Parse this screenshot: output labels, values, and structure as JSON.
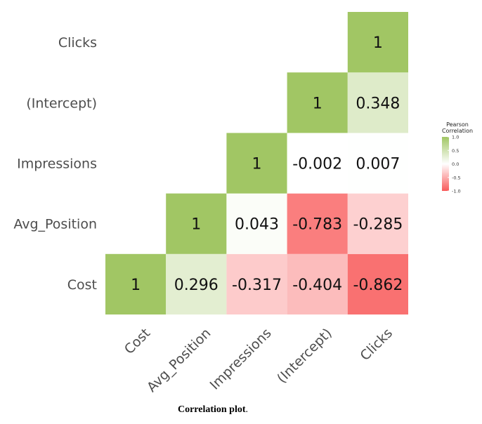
{
  "chart_data": {
    "type": "heatmap",
    "variables": [
      "Cost",
      "Avg_Position",
      "Impressions",
      "(Intercept)",
      "Clicks"
    ],
    "matrix": [
      [
        1,
        0.296,
        -0.317,
        -0.404,
        -0.862
      ],
      [
        0.296,
        1,
        0.043,
        -0.783,
        -0.285
      ],
      [
        -0.317,
        0.043,
        1,
        -0.002,
        0.007
      ],
      [
        -0.404,
        -0.783,
        -0.002,
        1,
        0.348
      ],
      [
        -0.862,
        -0.285,
        0.007,
        0.348,
        1
      ]
    ],
    "cells": [
      {
        "row": "Cost",
        "col": "Cost",
        "value": 1,
        "label": "1"
      },
      {
        "row": "Cost",
        "col": "Avg_Position",
        "value": 0.296,
        "label": "0.296"
      },
      {
        "row": "Cost",
        "col": "Impressions",
        "value": -0.317,
        "label": "-0.317"
      },
      {
        "row": "Cost",
        "col": "(Intercept)",
        "value": -0.404,
        "label": "-0.404"
      },
      {
        "row": "Cost",
        "col": "Clicks",
        "value": -0.862,
        "label": "-0.862"
      },
      {
        "row": "Avg_Position",
        "col": "Avg_Position",
        "value": 1,
        "label": "1"
      },
      {
        "row": "Avg_Position",
        "col": "Impressions",
        "value": 0.043,
        "label": "0.043"
      },
      {
        "row": "Avg_Position",
        "col": "(Intercept)",
        "value": -0.783,
        "label": "-0.783"
      },
      {
        "row": "Avg_Position",
        "col": "Clicks",
        "value": -0.285,
        "label": "-0.285"
      },
      {
        "row": "Impressions",
        "col": "Impressions",
        "value": 1,
        "label": "1"
      },
      {
        "row": "Impressions",
        "col": "(Intercept)",
        "value": -0.002,
        "label": "-0.002"
      },
      {
        "row": "Impressions",
        "col": "Clicks",
        "value": 0.007,
        "label": "0.007"
      },
      {
        "row": "(Intercept)",
        "col": "(Intercept)",
        "value": 1,
        "label": "1"
      },
      {
        "row": "(Intercept)",
        "col": "Clicks",
        "value": 0.348,
        "label": "0.348"
      },
      {
        "row": "Clicks",
        "col": "Clicks",
        "value": 1,
        "label": "1"
      }
    ],
    "legend": {
      "title": [
        "Pearson",
        "Correlation"
      ],
      "ticks": [
        "1.0",
        "0.5",
        "0.0",
        "-0.5",
        "-1.0"
      ],
      "tick_values": [
        1,
        0.5,
        0,
        -0.5,
        -1
      ],
      "placement": "right",
      "range": [
        -1,
        1
      ]
    },
    "colors": {
      "high": "#a1c664",
      "mid": "#ffffff",
      "low": "#f85a5a"
    },
    "grid": false
  },
  "caption": {
    "bold": "Correlation plot",
    "end": "."
  }
}
